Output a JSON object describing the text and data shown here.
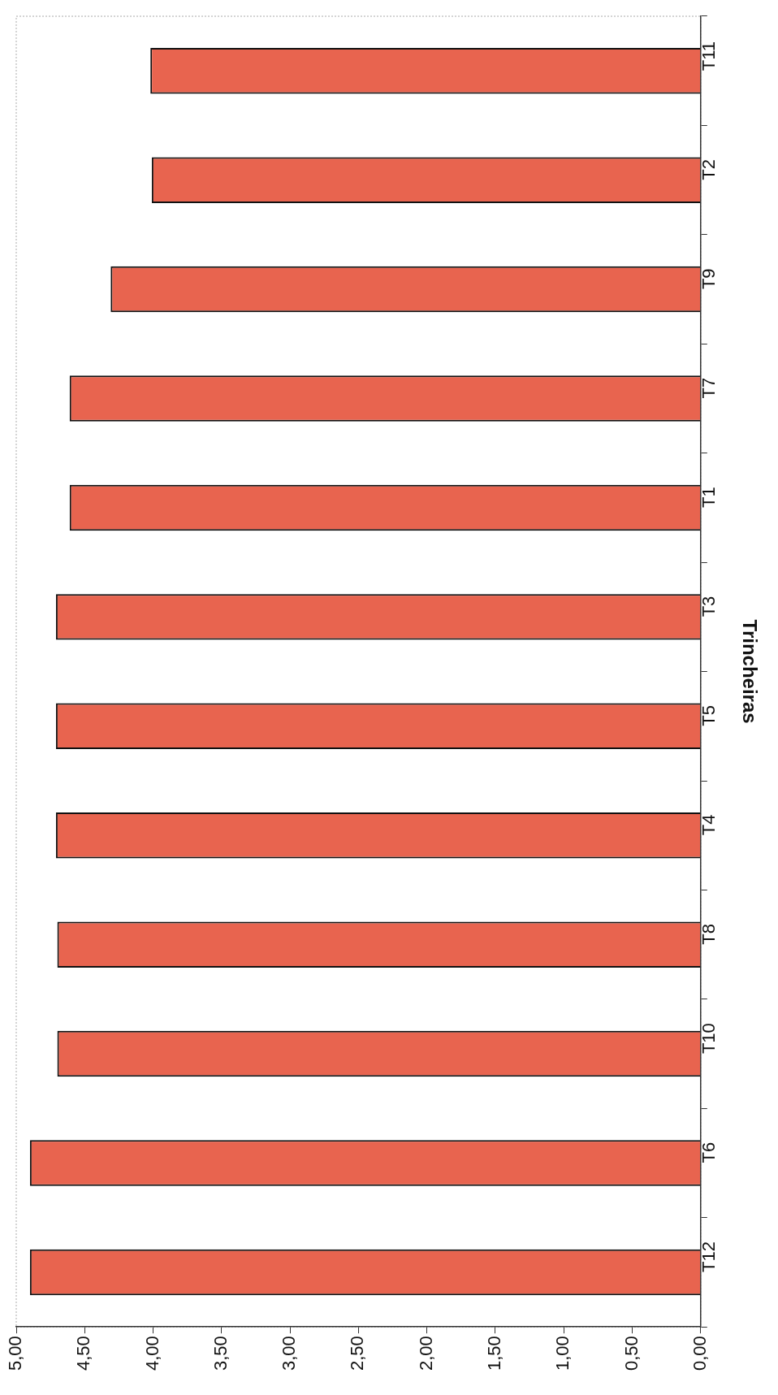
{
  "chart_data": {
    "type": "bar",
    "orientation": "horizontal",
    "ylabel": "Trincheiras",
    "categories": [
      "T11",
      "T2",
      "T9",
      "T7",
      "T1",
      "T3",
      "T5",
      "T4",
      "T8",
      "T10",
      "T6",
      "T12"
    ],
    "values": [
      4.02,
      4.01,
      4.31,
      4.61,
      4.61,
      4.71,
      4.71,
      4.71,
      4.7,
      4.7,
      4.9,
      4.9
    ],
    "color": "#e8644f",
    "xlim": [
      5,
      0
    ],
    "xticks": [
      {
        "value": 5,
        "label": "5,00"
      },
      {
        "value": 4.5,
        "label": "4,50"
      },
      {
        "value": 4,
        "label": "4,00"
      },
      {
        "value": 3.5,
        "label": "3,50"
      },
      {
        "value": 3,
        "label": "3,00"
      },
      {
        "value": 2.5,
        "label": "2,50"
      },
      {
        "value": 2,
        "label": "2,00"
      },
      {
        "value": 1.5,
        "label": "1,50"
      },
      {
        "value": 1,
        "label": "1,00"
      },
      {
        "value": 0.5,
        "label": "0,50"
      },
      {
        "value": 0,
        "label": "0,00"
      }
    ],
    "grid": false,
    "legend": false
  }
}
